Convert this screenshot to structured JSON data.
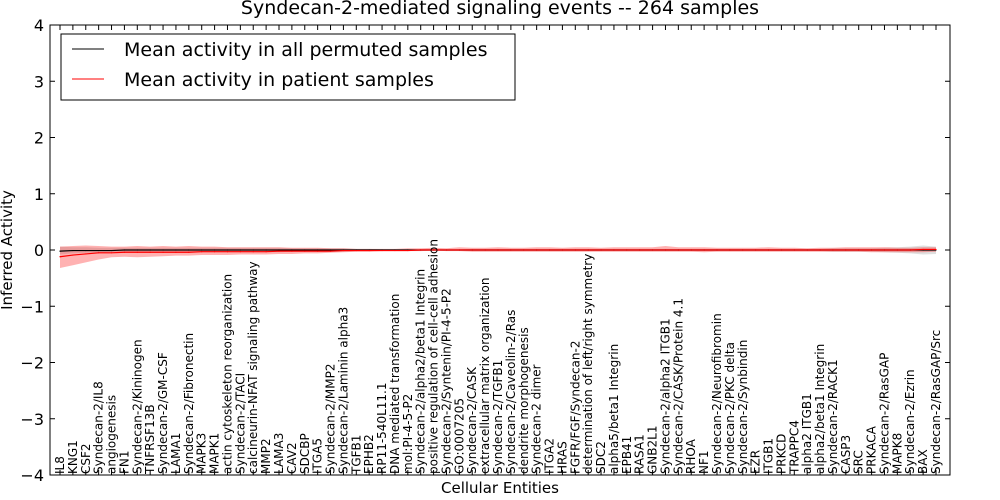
{
  "chart_data": {
    "type": "line",
    "title": "Syndecan-2-mediated signaling events -- 264 samples",
    "xlabel": "Cellular Entities",
    "ylabel": "Inferred Activity",
    "ylim": [
      -4,
      4
    ],
    "yticks": [
      "4",
      "3",
      "2",
      "1",
      "0",
      "−1",
      "−2",
      "−3",
      "−4"
    ],
    "legend_position": "top-left",
    "categories": [
      "IL8",
      "KNG1",
      "CSF2",
      "Syndecan-2/IL8",
      "angiogenesis",
      "FN1",
      "Syndecan-2/Kininogen",
      "TNFRSF13B",
      "Syndecan-2/GM-CSF",
      "LAMA1",
      "Syndecan-2/Fibronectin",
      "MAPK3",
      "MAPK1",
      "actin cytoskeleton reorganization",
      "Syndecan-2/TACI",
      "calcineurin-NFAT signaling pathway",
      "MMP2",
      "LAMA3",
      "CAV2",
      "SDCBP",
      "ITGA5",
      "Syndecan-2/MMP2",
      "Syndecan-2/Laminin alpha3",
      "TGFB1",
      "EPHB2",
      "RP11-540L11.1",
      "DNA mediated transformation",
      "mol:PI-4-5-P2",
      "Syndecan-2/alpha2/beta1 Integrin",
      "positive regulation of cell-cell adhesion",
      "Syndecan-2/Syntenin/PI-4-5-P2",
      "GO:0007205",
      "Syndecan-2/CASK",
      "extracellular matrix organization",
      "Syndecan-2/TGFB1",
      "Syndecan-2/Caveolin-2/Ras",
      "dendrite morphogenesis",
      "Syndecan-2 dimer",
      "ITGA2",
      "HRAS",
      "FGFR/FGF/Syndecan-2",
      "determination of left/right symmetry",
      "SDC2",
      "alpha5/beta1 Integrin",
      "EPB41",
      "RASA1",
      "GNB2L1",
      "Syndecan-2/alpha2 ITGB1",
      "Syndecan-2/CASK/Protein 4.1",
      "RHOA",
      "NF1",
      "Syndecan-2/Neurofibromin",
      "Syndecan-2/PKC delta",
      "Syndecan-2/Synbindin",
      "EZR",
      "ITGB1",
      "PRKCD",
      "TRAPPC4",
      "alpha2 ITGB1",
      "alpha2/beta1 Integrin",
      "Syndecan-2/RACK1",
      "CASP3",
      "SRC",
      "PRKACA",
      "Syndecan-2/RasGAP",
      "MAPK8",
      "Syndecan-2/Ezrin",
      "BAX",
      "Syndecan-2/RasGAP/Src"
    ],
    "series": [
      {
        "name": "Mean activity in all permuted samples",
        "color": "#000000",
        "values": [
          -0.02,
          -0.01,
          -0.01,
          -0.01,
          -0.01,
          0,
          0,
          0,
          0,
          0,
          0,
          0,
          0,
          0,
          0,
          0,
          0,
          0,
          0,
          0,
          0,
          0,
          0,
          0,
          0,
          0,
          0,
          0,
          0,
          0,
          0,
          0,
          0,
          0,
          0,
          0,
          0,
          0,
          0,
          0,
          0,
          0,
          0,
          0,
          0,
          0,
          0,
          0,
          0,
          0,
          0,
          0,
          0,
          0,
          0,
          0,
          0,
          0,
          0,
          0,
          0,
          0,
          0,
          0,
          0,
          0,
          0,
          0,
          0
        ],
        "band_low": [
          -0.08,
          -0.06,
          -0.05,
          -0.05,
          -0.04,
          -0.04,
          -0.04,
          -0.04,
          -0.04,
          -0.04,
          -0.04,
          -0.04,
          -0.04,
          -0.04,
          -0.04,
          -0.04,
          -0.04,
          -0.04,
          -0.03,
          -0.03,
          -0.03,
          -0.03,
          -0.03,
          -0.02,
          -0.02,
          -0.01,
          -0.01,
          -0.01,
          -0.01,
          -0.01,
          -0.01,
          -0.01,
          -0.02,
          -0.02,
          -0.02,
          -0.02,
          -0.02,
          -0.02,
          -0.02,
          -0.02,
          -0.02,
          -0.02,
          -0.02,
          -0.02,
          -0.02,
          -0.02,
          -0.02,
          -0.02,
          -0.02,
          -0.02,
          -0.02,
          -0.02,
          -0.02,
          -0.02,
          -0.02,
          -0.02,
          -0.02,
          -0.02,
          -0.02,
          -0.02,
          -0.03,
          -0.03,
          -0.03,
          -0.03,
          -0.04,
          -0.05,
          -0.06,
          -0.08,
          -0.07
        ],
        "band_high": [
          0.06,
          0.05,
          0.05,
          0.04,
          0.04,
          0.04,
          0.04,
          0.04,
          0.04,
          0.04,
          0.04,
          0.04,
          0.04,
          0.04,
          0.04,
          0.04,
          0.04,
          0.04,
          0.03,
          0.03,
          0.03,
          0.03,
          0.03,
          0.02,
          0.02,
          0.01,
          0.01,
          0.01,
          0.01,
          0.01,
          0.01,
          0.01,
          0.02,
          0.02,
          0.02,
          0.02,
          0.02,
          0.02,
          0.02,
          0.02,
          0.02,
          0.02,
          0.02,
          0.02,
          0.02,
          0.02,
          0.02,
          0.02,
          0.02,
          0.02,
          0.02,
          0.02,
          0.02,
          0.02,
          0.02,
          0.02,
          0.02,
          0.02,
          0.02,
          0.02,
          0.03,
          0.03,
          0.03,
          0.03,
          0.04,
          0.05,
          0.06,
          0.08,
          0.06
        ]
      },
      {
        "name": "Mean activity in patient samples",
        "color": "#ff0000",
        "values": [
          -0.12,
          -0.09,
          -0.07,
          -0.05,
          -0.05,
          -0.04,
          -0.04,
          -0.04,
          -0.04,
          -0.04,
          -0.04,
          -0.03,
          -0.03,
          -0.03,
          -0.03,
          -0.03,
          -0.03,
          -0.02,
          -0.02,
          -0.02,
          -0.02,
          -0.02,
          -0.01,
          -0.01,
          -0.01,
          -0.01,
          -0.01,
          -0.01,
          0,
          0,
          0,
          0,
          0,
          0,
          0,
          0,
          0,
          0,
          0,
          0,
          0,
          0,
          0,
          0,
          0,
          0,
          0,
          0,
          0,
          0,
          0,
          0,
          0,
          0,
          0,
          0,
          0,
          0,
          0,
          0,
          0,
          0,
          0,
          0,
          0,
          0,
          0,
          0.01,
          0.01
        ],
        "band_low": [
          -0.32,
          -0.27,
          -0.22,
          -0.17,
          -0.13,
          -0.12,
          -0.13,
          -0.12,
          -0.11,
          -0.1,
          -0.1,
          -0.09,
          -0.09,
          -0.09,
          -0.08,
          -0.08,
          -0.08,
          -0.07,
          -0.07,
          -0.06,
          -0.06,
          -0.05,
          -0.04,
          -0.03,
          -0.03,
          -0.02,
          -0.02,
          -0.02,
          -0.02,
          -0.01,
          -0.02,
          -0.02,
          -0.03,
          -0.03,
          -0.03,
          -0.03,
          -0.03,
          -0.03,
          -0.03,
          -0.03,
          -0.03,
          -0.03,
          -0.03,
          -0.03,
          -0.03,
          -0.03,
          -0.03,
          -0.03,
          -0.03,
          -0.03,
          -0.04,
          -0.03,
          -0.03,
          -0.03,
          -0.03,
          -0.03,
          -0.03,
          -0.03,
          -0.03,
          -0.03,
          -0.03,
          -0.03,
          -0.03,
          -0.04,
          -0.04,
          -0.04,
          -0.04,
          -0.04,
          -0.03
        ],
        "band_high": [
          0.06,
          0.07,
          0.08,
          0.07,
          0.06,
          0.06,
          0.07,
          0.06,
          0.07,
          0.06,
          0.07,
          0.06,
          0.06,
          0.05,
          0.05,
          0.05,
          0.05,
          0.05,
          0.04,
          0.04,
          0.04,
          0.03,
          0.03,
          0.02,
          0.02,
          0.02,
          0.02,
          0.03,
          0.03,
          0.04,
          0.03,
          0.05,
          0.04,
          0.04,
          0.05,
          0.04,
          0.04,
          0.05,
          0.05,
          0.04,
          0.05,
          0.05,
          0.04,
          0.05,
          0.05,
          0.05,
          0.05,
          0.07,
          0.05,
          0.05,
          0.05,
          0.04,
          0.04,
          0.04,
          0.04,
          0.05,
          0.04,
          0.04,
          0.03,
          0.04,
          0.04,
          0.05,
          0.05,
          0.05,
          0.05,
          0.04,
          0.04,
          0.05,
          0.05
        ]
      }
    ]
  }
}
